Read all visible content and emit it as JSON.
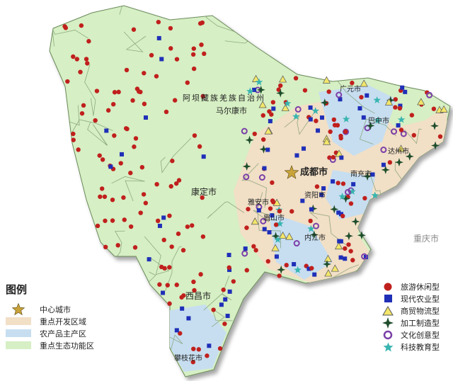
{
  "map": {
    "central_city_label": "成都市",
    "neighbor_label": "重庆市",
    "region_label": "阿坝藏族羌族自治州",
    "region_sub_label": "马尔康市",
    "other_labels": [
      "康定市",
      "西昌市",
      "广元市",
      "巴中市",
      "达州市",
      "南充市",
      "雅安市",
      "眉山市",
      "资阳市",
      "内江市",
      "攀枝花市"
    ]
  },
  "legend": {
    "title": "图例",
    "areas": [
      {
        "label": "中心城市",
        "symbol": "star-icon",
        "color": "#c9a33a"
      },
      {
        "label": "重点开发区域",
        "color": "#f1dfc6"
      },
      {
        "label": "农产品主产区",
        "color": "#c7def0"
      },
      {
        "label": "重点生态功能区",
        "color": "#d6efc4"
      }
    ],
    "types": [
      {
        "label": "旅游休闲型",
        "symbol": "circle-icon",
        "color": "#c0201d"
      },
      {
        "label": "现代农业型",
        "symbol": "square-icon",
        "color": "#1f2fb8"
      },
      {
        "label": "商贸物流型",
        "symbol": "triangle-icon",
        "color": "#f3e66a"
      },
      {
        "label": "加工制造型",
        "symbol": "four-point-star-icon",
        "color": "#1e4d2b"
      },
      {
        "label": "文化创意型",
        "symbol": "ring-icon",
        "color": "#7b3fa8"
      },
      {
        "label": "科技教育型",
        "symbol": "star-icon",
        "color": "#38b5b0"
      }
    ]
  }
}
